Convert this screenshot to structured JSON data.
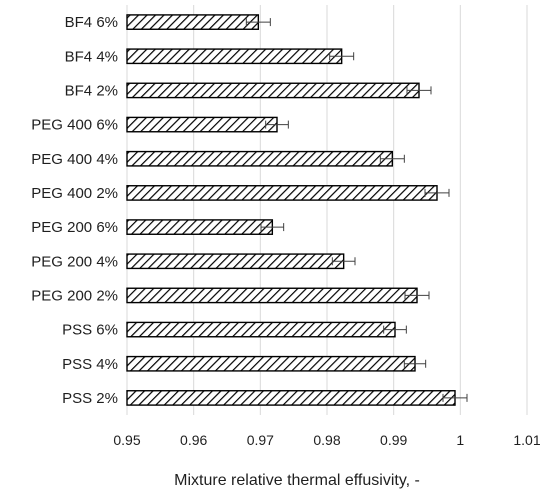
{
  "chart_data": {
    "type": "bar",
    "orientation": "horizontal",
    "title": "",
    "xlabel": "Mixture relative thermal effusivity, -",
    "ylabel": "",
    "xlim": [
      0.95,
      1.01
    ],
    "xticks": [
      "0.95",
      "0.96",
      "0.97",
      "0.98",
      "0.99",
      "1",
      "1.01"
    ],
    "grid": true,
    "legend": "none",
    "bar_pattern": "diagonal-hatch",
    "categories": [
      "BF4 6%",
      "BF4 4%",
      "BF4 2%",
      "PEG 400 6%",
      "PEG 400 4%",
      "PEG 400 2%",
      "PEG 200 6%",
      "PEG 200 4%",
      "PEG 200 2%",
      "PSS 6%",
      "PSS 4%",
      "PSS 2%"
    ],
    "values": [
      0.9697,
      0.9822,
      0.9938,
      0.9725,
      0.9898,
      0.9965,
      0.9718,
      0.9825,
      0.9935,
      0.9902,
      0.9932,
      0.9992
    ],
    "error": [
      0.0018,
      0.0018,
      0.0018,
      0.0017,
      0.0018,
      0.0018,
      0.0017,
      0.0017,
      0.0018,
      0.0017,
      0.0016,
      0.0018
    ],
    "colors": {
      "bar_stroke": "#000000",
      "hatch": "#000000",
      "grid": "#d9d9d9",
      "error": "#404040"
    }
  }
}
